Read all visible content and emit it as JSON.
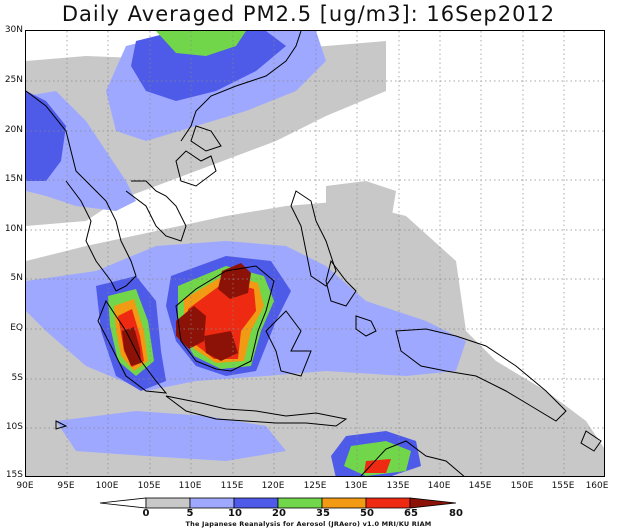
{
  "title": "Daily Averaged PM2.5 [ug/m3]: 16Sep2012",
  "lat_labels": [
    "30N",
    "25N",
    "20N",
    "15N",
    "10N",
    "5N",
    "EQ",
    "5S",
    "10S",
    "15S"
  ],
  "lon_labels": [
    "90E",
    "95E",
    "100E",
    "105E",
    "110E",
    "115E",
    "120E",
    "125E",
    "130E",
    "135E",
    "140E",
    "145E",
    "150E",
    "155E",
    "160E"
  ],
  "colorbar": {
    "labels": [
      "0",
      "5",
      "10",
      "20",
      "35",
      "50",
      "65",
      "80"
    ],
    "colors": [
      "#ffffff",
      "#c8c8c8",
      "#9ea8ff",
      "#4e5ae8",
      "#72d64a",
      "#f29a14",
      "#ee2a12",
      "#8c1208"
    ]
  },
  "credit": "The Japanese Reanalysis for Aerosol (JRAero) v1.0 MRI/KU RIAM"
}
